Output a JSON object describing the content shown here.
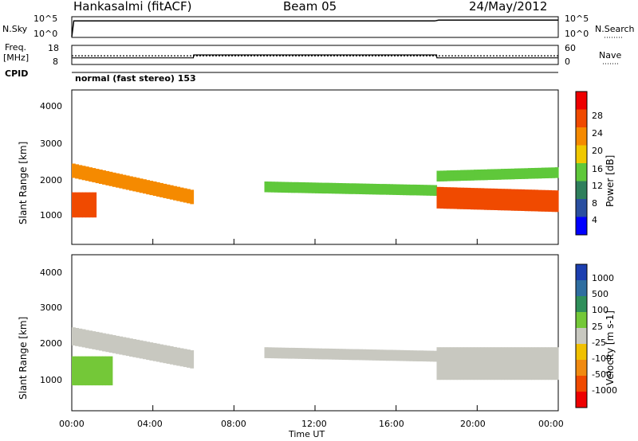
{
  "header": {
    "station": "Hankasalmi (fitACF)",
    "beam": "Beam 05",
    "date": "24/May/2012"
  },
  "top_panels": {
    "nsky_label": "N.Sky",
    "nsky_ticks": [
      "10^5",
      "10^0"
    ],
    "nsearch_label": "N.Search",
    "nsearch_ticks": [
      "10^5",
      "10^0"
    ],
    "freq_label": "Freq.",
    "freq_unit": "[MHz]",
    "freq_ticks": [
      "18",
      "8"
    ],
    "nave_label": "Nave",
    "nave_ticks": [
      "60",
      "0"
    ],
    "cpid_label": "CPID",
    "cpid_text": "normal (fast stereo) 153"
  },
  "power_panel": {
    "ylabel": "Slant Range [km]",
    "yticks": [
      "4000",
      "3000",
      "2000",
      "1000"
    ],
    "colorbar_label": "Power [dB]",
    "colorbar_ticks": [
      "28",
      "24",
      "20",
      "16",
      "12",
      "8",
      "4"
    ],
    "colors": [
      "#0000ff",
      "#2a4fa0",
      "#2f7f5c",
      "#5fc83a",
      "#f0c800",
      "#f58a00",
      "#f04a00",
      "#ee0000"
    ]
  },
  "velocity_panel": {
    "ylabel": "Slant Range [km]",
    "yticks": [
      "4000",
      "3000",
      "2000",
      "1000"
    ],
    "colorbar_label": "Velocity [m s-1]",
    "colorbar_ticks": [
      "1000",
      "500",
      "100",
      "25",
      "-25",
      "-100",
      "-500",
      "-1000"
    ],
    "colors": [
      "#1c3fb0",
      "#2f6ea0",
      "#2f8f5a",
      "#74c838",
      "#c8c8c0",
      "#f0c000",
      "#f08a10",
      "#f04a00",
      "#ee0000"
    ]
  },
  "xaxis": {
    "label": "Time UT",
    "ticks": [
      "00:00",
      "04:00",
      "08:00",
      "12:00",
      "16:00",
      "20:00",
      "00:00"
    ]
  },
  "chart_data": [
    {
      "type": "line",
      "title": "N.Sky / N.Search",
      "x_unit": "hours UT",
      "series": [
        {
          "name": "N.Sky",
          "x": [
            0,
            0.1,
            6,
            12,
            17.9,
            18.1,
            24
          ],
          "y": [
            1,
            30000,
            30000,
            30000,
            30000,
            50000,
            50000
          ]
        }
      ],
      "ylim": [
        1,
        100000
      ],
      "log_y": true
    },
    {
      "type": "line",
      "title": "Freq. / Nave",
      "series": [
        {
          "name": "Freq.",
          "unit": "MHz",
          "x": [
            0,
            24
          ],
          "y": [
            12.5,
            12.5
          ]
        },
        {
          "name": "Nave",
          "x": [
            0,
            6,
            6.01,
            18,
            18.01,
            24
          ],
          "y": [
            20,
            20,
            30,
            30,
            20,
            20
          ]
        }
      ],
      "ylim_freq": [
        8,
        18
      ],
      "ylim_nave": [
        0,
        60
      ]
    },
    {
      "type": "heatmap",
      "title": "Power [dB]",
      "xlabel": "Time UT",
      "ylabel": "Slant Range [km]",
      "xlim": [
        0,
        24
      ],
      "ylim": [
        200,
        4500
      ],
      "zlim": [
        0,
        30
      ],
      "colorbar_label": "Power [dB]",
      "bands": [
        {
          "x_start": 0.0,
          "x_end": 6.0,
          "range_start": 2250,
          "range_end": 1500,
          "thickness": 400,
          "power": 20
        },
        {
          "x_start": 0.0,
          "x_end": 1.2,
          "range_start": 1300,
          "range_end": 1300,
          "thickness": 700,
          "power": 26
        },
        {
          "x_start": 9.5,
          "x_end": 18.0,
          "range_start": 1800,
          "range_end": 1700,
          "thickness": 300,
          "power": 14
        },
        {
          "x_start": 18.0,
          "x_end": 24.0,
          "range_start": 1500,
          "range_end": 1400,
          "thickness": 600,
          "power": 24
        },
        {
          "x_start": 18.0,
          "x_end": 24.0,
          "range_start": 2100,
          "range_end": 2200,
          "thickness": 300,
          "power": 12
        }
      ]
    },
    {
      "type": "heatmap",
      "title": "Velocity [m s-1]",
      "xlabel": "Time UT",
      "ylabel": "Slant Range [km]",
      "xlim": [
        0,
        24
      ],
      "ylim": [
        200,
        4500
      ],
      "zlim": [
        -1000,
        1000
      ],
      "colorbar_label": "Velocity [m s-1]",
      "bands": [
        {
          "x_start": 0.0,
          "x_end": 6.0,
          "range_start": 2250,
          "range_end": 1600,
          "thickness": 500,
          "velocity": 0
        },
        {
          "x_start": 0.0,
          "x_end": 2.0,
          "range_start": 1300,
          "range_end": 1300,
          "thickness": 800,
          "velocity": 300
        },
        {
          "x_start": 9.5,
          "x_end": 18.0,
          "range_start": 1800,
          "range_end": 1700,
          "thickness": 300,
          "velocity": 0
        },
        {
          "x_start": 18.0,
          "x_end": 24.0,
          "range_start": 1500,
          "range_end": 1500,
          "thickness": 900,
          "velocity": 0
        }
      ]
    }
  ]
}
